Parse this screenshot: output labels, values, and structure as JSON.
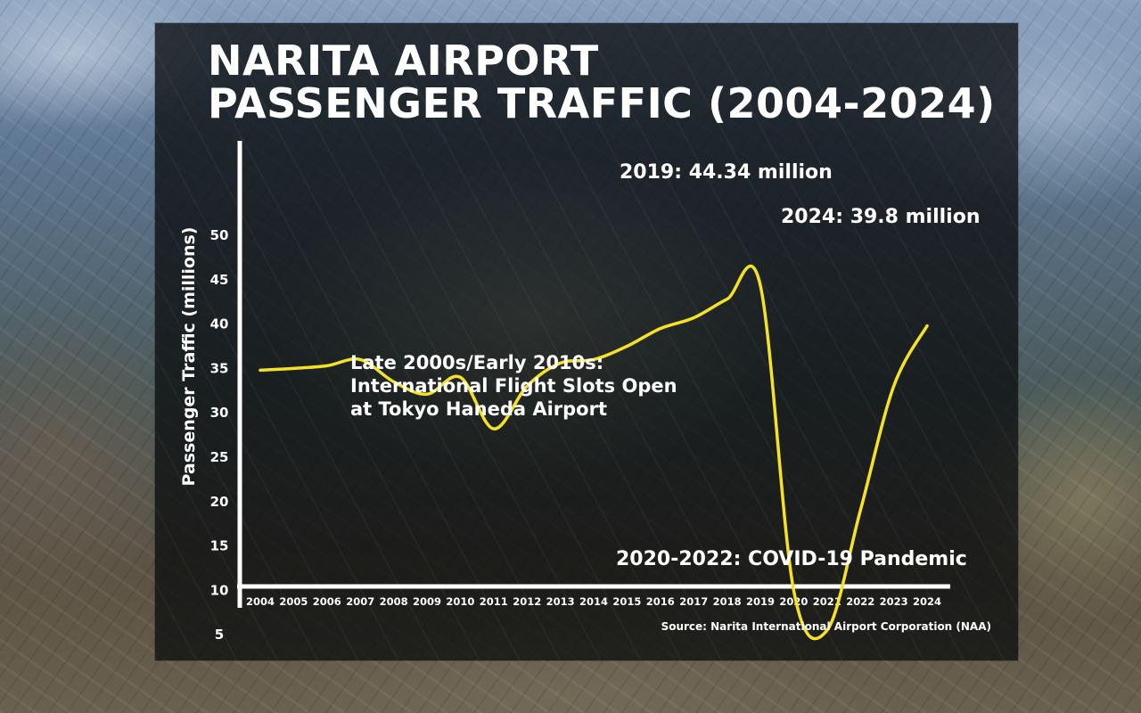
{
  "title_line1": "NARITA AIRPORT",
  "title_line2": "PASSENGER TRAFFIC (2004-2024)",
  "source": "Source: Narita International Airport Corporation (NAA)",
  "colors": {
    "line": "#f6e224",
    "axis": "#ffffff",
    "text": "#ffffff",
    "panel": "#0c0e10"
  },
  "chart_data": {
    "type": "line",
    "ylabel": "Passenger Traffic (millions)",
    "xlabel": "",
    "ylim": [
      0,
      50
    ],
    "yticks": [
      5,
      10,
      15,
      20,
      25,
      30,
      35,
      40,
      45,
      50
    ],
    "categories": [
      "2004",
      "2005",
      "2006",
      "2007",
      "2008",
      "2009",
      "2010",
      "2011",
      "2012",
      "2013",
      "2014",
      "2015",
      "2016",
      "2017",
      "2018",
      "2019",
      "2020",
      "2021",
      "2022",
      "2023",
      "2024"
    ],
    "series": [
      {
        "values": [
          34.8,
          35.0,
          35.3,
          36.0,
          33.5,
          32.1,
          34.0,
          28.2,
          33.0,
          35.6,
          36.0,
          37.5,
          39.5,
          40.7,
          42.8,
          44.34,
          10.0,
          5.5,
          19.0,
          33.0,
          39.8
        ]
      }
    ],
    "annotations": [
      {
        "text": "2019: 44.34 million",
        "x": "2019",
        "y": 44.34
      },
      {
        "text": "2024: 39.8 million",
        "x": "2024",
        "y": 39.8
      },
      {
        "text": "Late 2000s/Early 2010s:",
        "x": "2009",
        "y": 18
      },
      {
        "text": "International Flight Slots Open",
        "x": "2009",
        "y": 18
      },
      {
        "text": "at Tokyo Haneda Airport",
        "x": "2009",
        "y": 18
      },
      {
        "text": "2020-2022: COVID-19 Pandemic",
        "x": "2021",
        "y": 4
      }
    ],
    "grid": false,
    "legend": "none"
  }
}
